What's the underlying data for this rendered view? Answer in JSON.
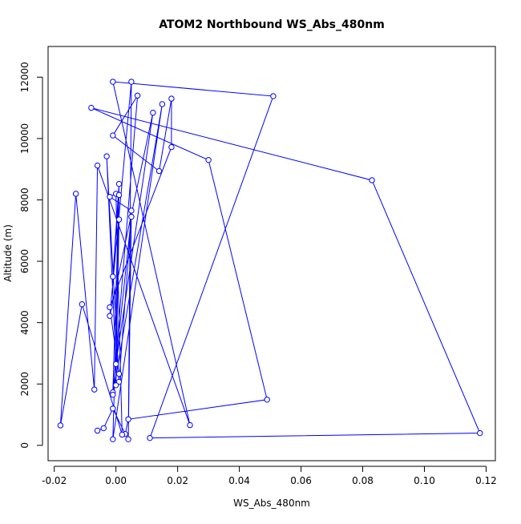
{
  "chart_data": {
    "type": "line",
    "title": "ATOM2 Northbound WS_Abs_480nm",
    "xlabel": "WS_Abs_480nm",
    "ylabel": "Altitude (m)",
    "xlim": [
      -0.022,
      0.123
    ],
    "ylim": [
      -500,
      13000
    ],
    "xticks": [
      -0.02,
      0.0,
      0.02,
      0.04,
      0.06,
      0.08,
      0.1,
      0.12
    ],
    "xtick_labels": [
      "-0.02",
      "0.00",
      "0.02",
      "0.04",
      "0.06",
      "0.08",
      "0.10",
      "0.12"
    ],
    "yticks": [
      0,
      2000,
      4000,
      6000,
      8000,
      10000,
      12000
    ],
    "ytick_labels": [
      "0",
      "2000",
      "4000",
      "6000",
      "8000",
      "10000",
      "12000"
    ],
    "grid": false,
    "series": [
      {
        "color": "#0000ff",
        "marker": "open-circle",
        "points": [
          [
            -0.006,
            480
          ],
          [
            -0.004,
            560
          ],
          [
            -0.001,
            1200
          ],
          [
            0.003,
            370
          ],
          [
            0.004,
            850
          ],
          [
            0.049,
            1490
          ],
          [
            0.03,
            9300
          ],
          [
            -0.008,
            11000
          ],
          [
            0.083,
            8640
          ],
          [
            0.118,
            400
          ],
          [
            0.011,
            240
          ],
          [
            0.051,
            11380
          ],
          [
            -0.001,
            11850
          ],
          [
            0.024,
            660
          ],
          [
            -0.006,
            9120
          ],
          [
            -0.007,
            1820
          ],
          [
            -0.013,
            8200
          ],
          [
            -0.018,
            650
          ],
          [
            -0.011,
            4600
          ],
          [
            0.002,
            350
          ],
          [
            0.0,
            8200
          ],
          [
            -0.002,
            8100
          ],
          [
            0.005,
            7650
          ],
          [
            0.004,
            200
          ],
          [
            0.005,
            11850
          ],
          [
            -0.002,
            4220
          ],
          [
            0.012,
            10840
          ],
          [
            0.0,
            2650
          ],
          [
            -0.003,
            9420
          ],
          [
            0.001,
            2070
          ],
          [
            0.005,
            7450
          ],
          [
            -0.001,
            1730
          ],
          [
            0.001,
            8160
          ],
          [
            -0.001,
            5500
          ],
          [
            0.001,
            8520
          ],
          [
            0.0,
            1960
          ],
          [
            0.001,
            7360
          ],
          [
            -0.001,
            200
          ],
          [
            0.015,
            11120
          ],
          [
            -0.001,
            1650
          ],
          [
            0.007,
            11400
          ],
          [
            -0.001,
            10100
          ],
          [
            0.014,
            8940
          ],
          [
            0.018,
            11300
          ],
          [
            0.018,
            9720
          ],
          [
            -0.002,
            4500
          ],
          [
            0.001,
            2330
          ]
        ]
      }
    ]
  }
}
